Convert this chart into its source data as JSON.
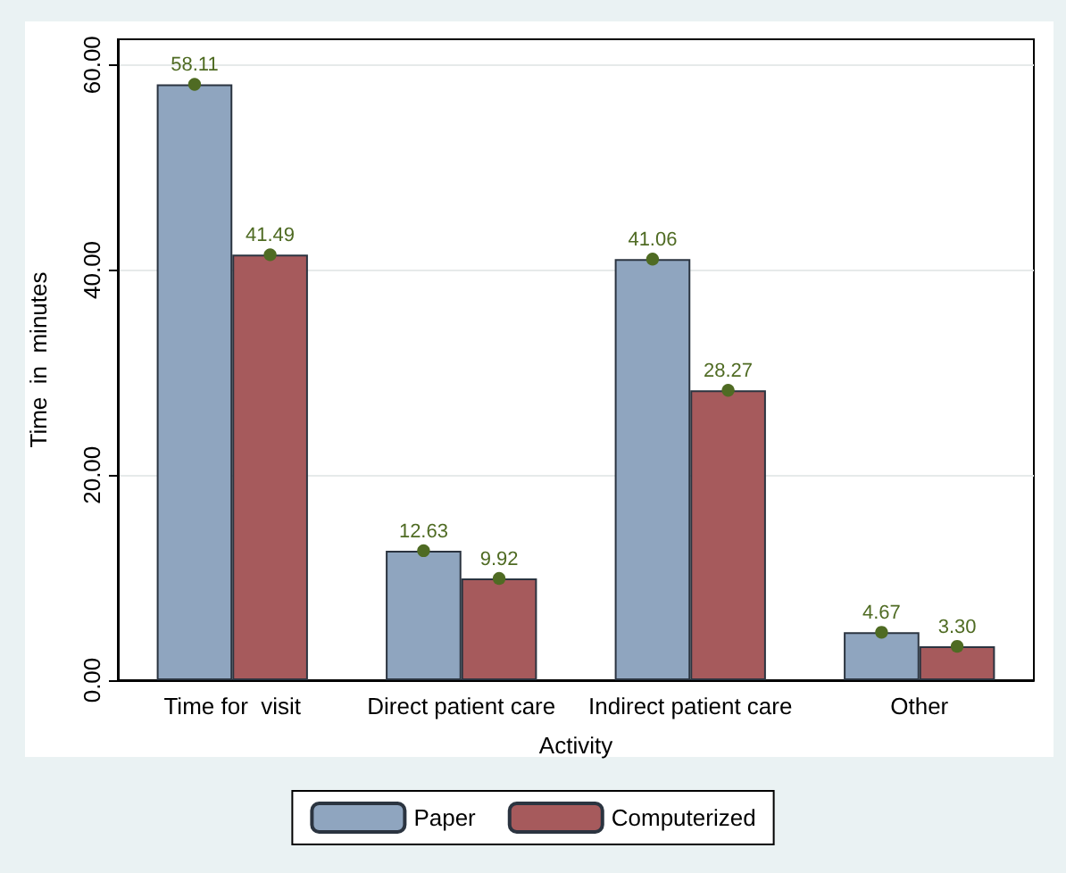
{
  "chart_data": {
    "type": "bar",
    "xlabel": "Activity",
    "ylabel": "Time  in  minutes",
    "categories": [
      "Time for  visit",
      "Direct patient care",
      "Indirect patient care",
      "Other"
    ],
    "series": [
      {
        "name": "Paper",
        "color": "#8fa5bf",
        "values": [
          58.11,
          12.63,
          41.06,
          4.67
        ],
        "value_labels": [
          "58.11",
          "12.63",
          "41.06",
          "4.67"
        ]
      },
      {
        "name": "Computerized",
        "color": "#a65a5c",
        "values": [
          41.49,
          9.92,
          28.27,
          3.3
        ],
        "value_labels": [
          "41.49",
          "9.92",
          "28.27",
          "3.30"
        ]
      },
      {
        "type": "scatter",
        "color": "#4f6b23",
        "x": [
          "Time for  visit",
          "Direct patient care",
          "Indirect patient care",
          "Other"
        ],
        "values": [
          58.11,
          12.63,
          41.06,
          4.67
        ]
      },
      {
        "type": "scatter",
        "color": "#4f6b23",
        "x": [
          "Time for  visit",
          "Direct patient care",
          "Indirect patient care",
          "Other"
        ],
        "values": [
          41.49,
          9.92,
          28.27,
          3.3
        ]
      }
    ],
    "ylim": [
      0,
      62.5
    ],
    "yticks": [
      {
        "value": 0,
        "label": "0.00"
      },
      {
        "value": 20,
        "label": "20.00"
      },
      {
        "value": 40,
        "label": "40.00"
      },
      {
        "value": 60,
        "label": "60.00"
      }
    ],
    "grid": "y",
    "legend": "bottom",
    "marker": "circle"
  }
}
